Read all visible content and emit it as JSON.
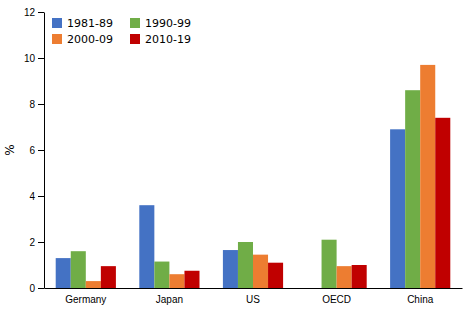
{
  "chart_data": {
    "type": "bar",
    "categories": [
      "Germany",
      "Japan",
      "US",
      "OECD",
      "China"
    ],
    "series": [
      {
        "name": "1981-89",
        "color": "#4472C4",
        "values": [
          1.3,
          3.6,
          1.65,
          0.0,
          6.9
        ]
      },
      {
        "name": "1990-99",
        "color": "#70AD47",
        "values": [
          1.6,
          1.15,
          2.0,
          2.1,
          8.6
        ]
      },
      {
        "name": "2000-09",
        "color": "#ED7D31",
        "values": [
          0.3,
          0.6,
          1.45,
          0.95,
          9.7
        ]
      },
      {
        "name": "2010-19",
        "color": "#C00000",
        "values": [
          0.95,
          0.75,
          1.1,
          1.0,
          7.4
        ]
      }
    ],
    "ylabel": "%",
    "ylim": [
      0,
      12
    ],
    "yticks": [
      0,
      2,
      4,
      6,
      8,
      10,
      12
    ],
    "grid": false,
    "legend": "upper left"
  }
}
